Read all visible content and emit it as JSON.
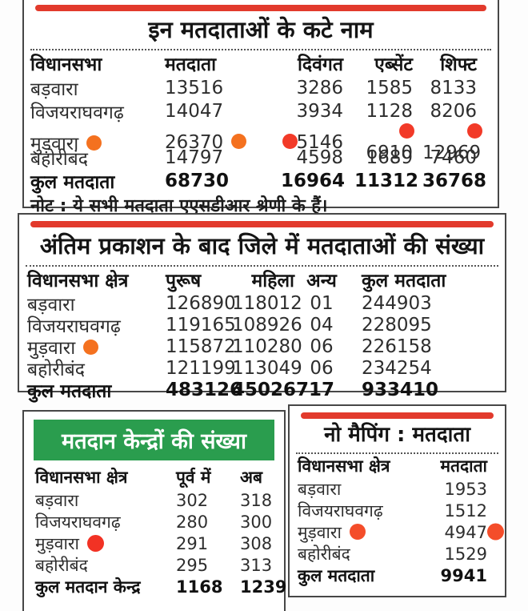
{
  "colors": {
    "accent_red": "#e23a2c",
    "accent_green": "#2a9d4e",
    "border": "#474747",
    "dot_orange": "#f4711f",
    "dot_red": "#f23a28"
  },
  "deleted": {
    "title": "इन मतदाताओं के कटे नाम",
    "headers": [
      "विधानसभा",
      "मतदाता",
      "दिवंगत",
      "एब्सेंट",
      "शिफ्ट"
    ],
    "rows": [
      {
        "name": "बड़वारा",
        "values": [
          "13516",
          "3286",
          "1585",
          "8133"
        ]
      },
      {
        "name": "विजयराघवगढ़",
        "values": [
          "14047",
          "3934",
          "1128",
          "8206"
        ]
      },
      {
        "name": "मुड़वारा",
        "values": [
          "26370",
          "5146",
          "6910",
          "12969"
        ],
        "highlighted": true
      },
      {
        "name": "बहोरीबंद",
        "values": [
          "14797",
          "4598",
          "1689",
          "7460"
        ]
      }
    ],
    "total": {
      "name": "कुल मतदाता",
      "values": [
        "68730",
        "16964",
        "11312",
        "36768"
      ]
    },
    "note": "नोट : ये सभी मतदाता एएसडीआर श्रेणी के हैं।"
  },
  "after_publication": {
    "title": "अंतिम प्रकाशन के बाद जिले में मतदाताओं की संख्या",
    "headers": [
      "विधानसभा क्षेत्र",
      "पुरूष",
      "महिला",
      "अन्य",
      "कुल मतदाता"
    ],
    "rows": [
      {
        "name": "बड़वारा",
        "values": [
          "126890",
          "118012",
          "01",
          "244903"
        ]
      },
      {
        "name": "विजयराघवगढ़",
        "values": [
          "119165",
          "108926",
          "04",
          "228095"
        ]
      },
      {
        "name": "मुड़वारा",
        "values": [
          "115872",
          "110280",
          "06",
          "226158"
        ],
        "highlighted": true
      },
      {
        "name": "बहोरीबंद",
        "values": [
          "121199",
          "113049",
          "06",
          "234254"
        ]
      }
    ],
    "total": {
      "name": "कुल मतदाता",
      "values": [
        "483126",
        "450267",
        "17",
        "933410"
      ]
    }
  },
  "polling_stations": {
    "title": "मतदान केन्द्रों की संख्या",
    "headers": [
      "विधानसभा क्षेत्र",
      "पूर्व में",
      "अब"
    ],
    "rows": [
      {
        "name": "बड़वारा",
        "values": [
          "302",
          "318"
        ]
      },
      {
        "name": "विजयराघवगढ़",
        "values": [
          "280",
          "300"
        ]
      },
      {
        "name": "मुड़वारा",
        "values": [
          "291",
          "308"
        ],
        "highlighted": true
      },
      {
        "name": "बहोरीबंद",
        "values": [
          "295",
          "313"
        ]
      }
    ],
    "total": {
      "name": "कुल मतदान केन्द्र",
      "values": [
        "1168",
        "1239"
      ]
    }
  },
  "no_mapping": {
    "title": "नो मैपिंग : मतदाता",
    "headers": [
      "विधानसभा क्षेत्र",
      "मतदाता"
    ],
    "rows": [
      {
        "name": "बड़वारा",
        "values": [
          "1953"
        ]
      },
      {
        "name": "विजयराघवगढ़",
        "values": [
          "1512"
        ]
      },
      {
        "name": "मुड़वारा",
        "values": [
          "4947"
        ],
        "highlighted": true
      },
      {
        "name": "बहोरीबंद",
        "values": [
          "1529"
        ]
      }
    ],
    "total": {
      "name": "कुल मतदाता",
      "values": [
        "9941"
      ]
    }
  }
}
